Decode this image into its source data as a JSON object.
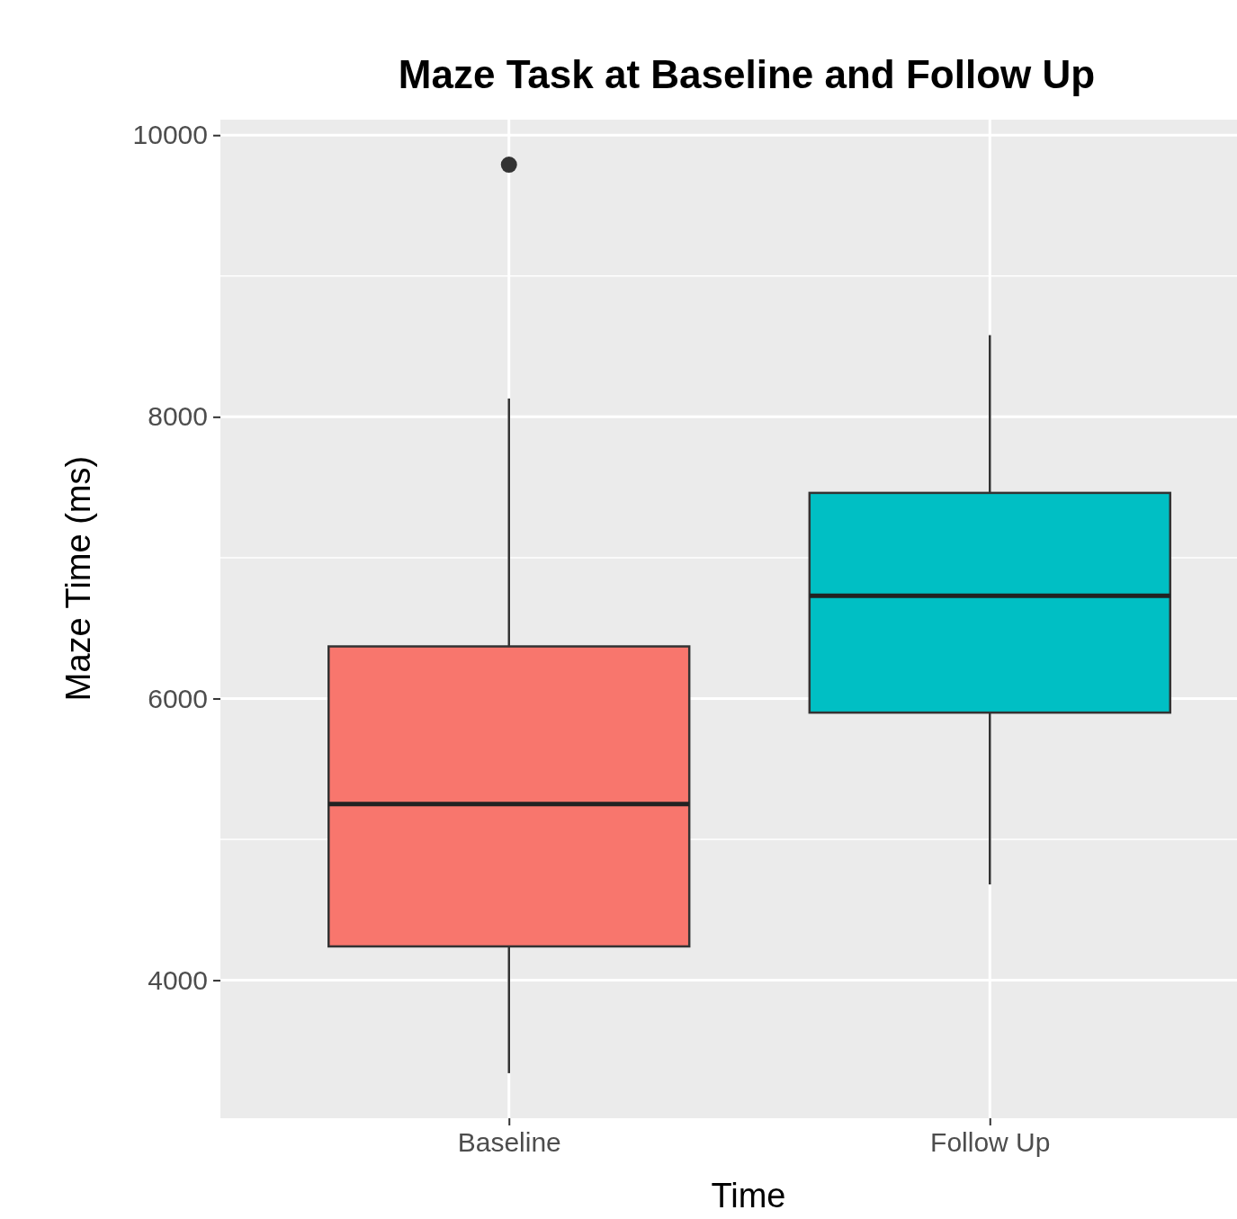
{
  "chart_data": {
    "type": "box",
    "title": "Maze Task at Baseline and Follow Up",
    "xlabel": "Time",
    "ylabel": "Maze Time (ms)",
    "categories": [
      "Baseline",
      "Follow Up"
    ],
    "colors": [
      "#f8766d",
      "#00bfc4"
    ],
    "boxes": [
      {
        "low": 3340,
        "q1": 4240,
        "median": 5250,
        "q3": 6370,
        "high": 8130,
        "outliers": [
          9790
        ]
      },
      {
        "low": 4680,
        "q1": 5900,
        "median": 6730,
        "q3": 7460,
        "high": 8580
      }
    ],
    "ylim": [
      3020,
      10110
    ],
    "yticks": [
      4000,
      6000,
      8000,
      10000
    ],
    "grid": true
  }
}
